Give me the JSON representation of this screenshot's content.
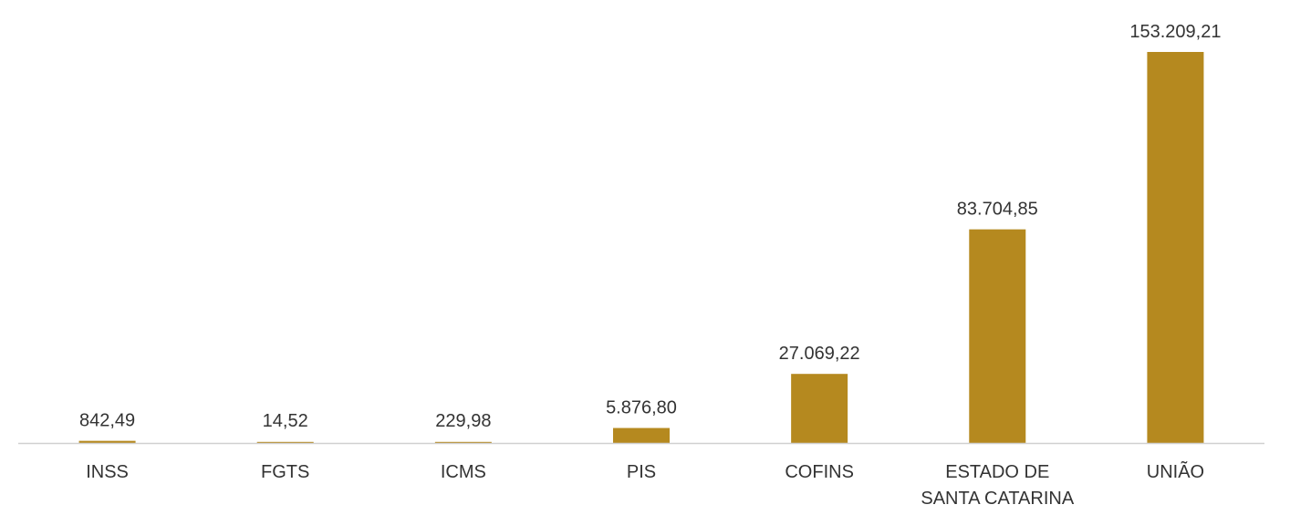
{
  "chart_data": {
    "type": "bar",
    "categories": [
      [
        "INSS"
      ],
      [
        "FGTS"
      ],
      [
        "ICMS"
      ],
      [
        "PIS"
      ],
      [
        "COFINS"
      ],
      [
        "ESTADO DE",
        "SANTA CATARINA"
      ],
      [
        "UNIÃO"
      ]
    ],
    "values": [
      842.49,
      14.52,
      229.98,
      5876.8,
      27069.22,
      83704.85,
      153209.21
    ],
    "data_labels": [
      "842,49",
      "14,52",
      "229,98",
      "5.876,80",
      "27.069,22",
      "83.704,85",
      "153.209,21"
    ],
    "ylim": [
      0,
      153209.21
    ],
    "grid": false,
    "legend": "none",
    "bar_color": "#B5891F",
    "axis_color": "#D0D0D0",
    "text_color": "#333333"
  }
}
